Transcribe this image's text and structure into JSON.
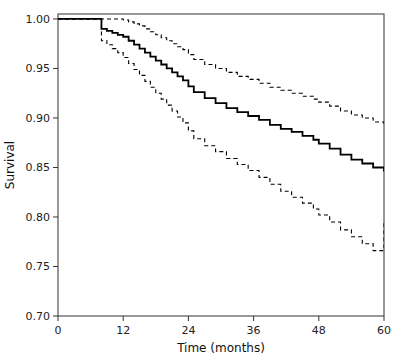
{
  "chart_data": {
    "type": "step",
    "xlabel": "Time (months)",
    "ylabel": "Survival",
    "xlim": [
      0,
      60
    ],
    "ylim": [
      0.7,
      1.005
    ],
    "xticks": [
      0,
      12,
      24,
      36,
      48,
      60
    ],
    "yticks": [
      {
        "value": 0.7,
        "label": "0.70"
      },
      0.75,
      {
        "value": 0.8,
        "label": "0.80"
      },
      0.85,
      {
        "value": 0.9,
        "label": "0.90"
      },
      0.95,
      {
        "value": 1.0,
        "label": "1.00"
      }
    ],
    "grid": false,
    "x": [
      0,
      2,
      4,
      6,
      8,
      9,
      10,
      11,
      12,
      13,
      14,
      15,
      16,
      17,
      18,
      19,
      20,
      21,
      22,
      23,
      24,
      25,
      27,
      29,
      31,
      33,
      35,
      37,
      39,
      41,
      43,
      45,
      47,
      48,
      50,
      52,
      54,
      56,
      58,
      60
    ],
    "series": [
      {
        "color": "#000000",
        "line_style": "dashed",
        "values": [
          1.0,
          1.0,
          1.0,
          1.0,
          1.0,
          1.0,
          1.0,
          1.0,
          0.999,
          0.997,
          0.995,
          0.993,
          0.99,
          0.987,
          0.984,
          0.981,
          0.978,
          0.975,
          0.972,
          0.969,
          0.964,
          0.959,
          0.954,
          0.95,
          0.946,
          0.942,
          0.939,
          0.935,
          0.931,
          0.928,
          0.925,
          0.922,
          0.919,
          0.916,
          0.912,
          0.907,
          0.903,
          0.9,
          0.896,
          0.893
        ]
      },
      {
        "color": "#000000",
        "line_style": "dashed",
        "values": [
          1.0,
          1.0,
          1.0,
          1.0,
          0.978,
          0.974,
          0.97,
          0.966,
          0.961,
          0.955,
          0.949,
          0.943,
          0.937,
          0.931,
          0.925,
          0.919,
          0.913,
          0.907,
          0.901,
          0.895,
          0.887,
          0.879,
          0.872,
          0.866,
          0.859,
          0.853,
          0.847,
          0.84,
          0.833,
          0.826,
          0.82,
          0.814,
          0.808,
          0.802,
          0.795,
          0.787,
          0.78,
          0.773,
          0.766,
          0.795
        ]
      },
      {
        "color": "#000000",
        "line_style": "solid",
        "values": [
          1.0,
          1.0,
          1.0,
          1.0,
          0.99,
          0.988,
          0.986,
          0.984,
          0.982,
          0.978,
          0.974,
          0.97,
          0.966,
          0.962,
          0.958,
          0.954,
          0.95,
          0.946,
          0.942,
          0.938,
          0.932,
          0.926,
          0.92,
          0.915,
          0.91,
          0.906,
          0.902,
          0.898,
          0.893,
          0.889,
          0.886,
          0.882,
          0.878,
          0.874,
          0.869,
          0.863,
          0.858,
          0.854,
          0.85,
          0.846
        ]
      }
    ]
  }
}
